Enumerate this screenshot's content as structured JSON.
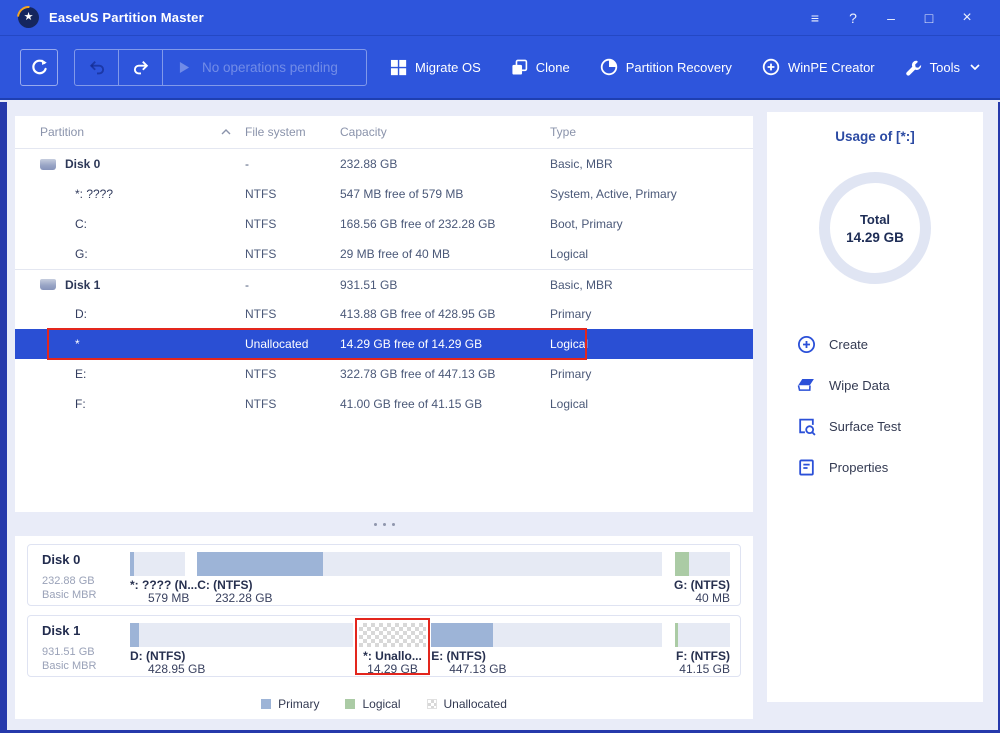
{
  "window": {
    "title": "EaseUS Partition Master",
    "logo_glyph": "★",
    "controls": [
      {
        "id": "menu",
        "glyph": "≡"
      },
      {
        "id": "help",
        "glyph": "?"
      },
      {
        "id": "minimize",
        "glyph": "–"
      },
      {
        "id": "maximize",
        "glyph": "□"
      },
      {
        "id": "close",
        "glyph": "×"
      }
    ]
  },
  "toolbar": {
    "pending_label": "No operations pending",
    "actions": [
      {
        "id": "migrate-os",
        "label": "Migrate OS",
        "icon": "migrate-os-icon"
      },
      {
        "id": "clone",
        "label": "Clone",
        "icon": "clone-icon"
      },
      {
        "id": "partition-recovery",
        "label": "Partition Recovery",
        "icon": "partition-recovery-icon"
      },
      {
        "id": "winpe-creator",
        "label": "WinPE Creator",
        "icon": "winpe-creator-icon"
      },
      {
        "id": "tools",
        "label": "Tools",
        "icon": "tools-icon",
        "has_dropdown": true
      }
    ]
  },
  "table": {
    "columns": [
      "Partition",
      "File system",
      "Capacity",
      "Type"
    ],
    "sort_column": "Partition",
    "rows": [
      {
        "name": "Disk 0",
        "fs": "-",
        "capacity": "232.88 GB",
        "type": "Basic, MBR",
        "is_disk": true
      },
      {
        "name": "*: ????",
        "fs": "NTFS",
        "capacity": "547 MB free of 579 MB",
        "type": "System, Active, Primary"
      },
      {
        "name": "C:",
        "fs": "NTFS",
        "capacity": "168.56 GB free of 232.28 GB",
        "type": "Boot, Primary"
      },
      {
        "name": "G:",
        "fs": "NTFS",
        "capacity": "29 MB free of 40 MB",
        "type": "Logical"
      },
      {
        "name": "Disk 1",
        "fs": "-",
        "capacity": "931.51 GB",
        "type": "Basic, MBR",
        "is_disk": true,
        "group_start": true
      },
      {
        "name": "D:",
        "fs": "NTFS",
        "capacity": "413.88 GB free of 428.95 GB",
        "type": "Primary"
      },
      {
        "name": "*",
        "fs": "Unallocated",
        "capacity": "14.29 GB free of 14.29 GB",
        "type": "Logical",
        "selected": true,
        "highlighted": true
      },
      {
        "name": "E:",
        "fs": "NTFS",
        "capacity": "322.78 GB free of 447.13 GB",
        "type": "Primary"
      },
      {
        "name": "F:",
        "fs": "NTFS",
        "capacity": "41.00 GB free of 41.15 GB",
        "type": "Logical"
      }
    ]
  },
  "sidebar": {
    "usage_title": "Usage of [*:]",
    "total_label": "Total",
    "total_value": "14.29 GB",
    "actions": [
      {
        "id": "create",
        "label": "Create",
        "icon": "create-icon"
      },
      {
        "id": "wipe-data",
        "label": "Wipe Data",
        "icon": "wipe-data-icon"
      },
      {
        "id": "surface-test",
        "label": "Surface Test",
        "icon": "surface-test-icon"
      },
      {
        "id": "properties",
        "label": "Properties",
        "icon": "properties-icon"
      }
    ]
  },
  "disk_map": {
    "disks": [
      {
        "name": "Disk 0",
        "size": "232.88 GB",
        "layout": "Basic MBR",
        "partitions": [
          {
            "label": "*: ???? (N...",
            "size": "579 MB",
            "kind": "primary",
            "left_pct": 0,
            "width_pct": 9.2,
            "used_pct": 7,
            "align": "left"
          },
          {
            "label": "C: (NTFS)",
            "size": "232.28 GB",
            "kind": "primary",
            "left_pct": 11.2,
            "width_pct": 77.4,
            "used_pct": 27,
            "align": "left"
          },
          {
            "label": "G: (NTFS)",
            "size": "40 MB",
            "kind": "logical",
            "left_pct": 90.8,
            "width_pct": 9.2,
            "used_pct": 25,
            "align": "right"
          }
        ]
      },
      {
        "name": "Disk 1",
        "size": "931.51 GB",
        "layout": "Basic MBR",
        "partitions": [
          {
            "label": "D: (NTFS)",
            "size": "428.95 GB",
            "kind": "primary",
            "left_pct": 0,
            "width_pct": 37.2,
            "used_pct": 4,
            "align": "left"
          },
          {
            "label": "*: Unallo...",
            "size": "14.29 GB",
            "kind": "unallocated",
            "left_pct": 38.1,
            "width_pct": 11.3,
            "used_pct": 0,
            "align": "center",
            "highlighted": true
          },
          {
            "label": "E: (NTFS)",
            "size": "447.13 GB",
            "kind": "primary",
            "left_pct": 50.2,
            "width_pct": 38.4,
            "used_pct": 27,
            "align": "left"
          },
          {
            "label": "F: (NTFS)",
            "size": "41.15 GB",
            "kind": "logical",
            "left_pct": 90.8,
            "width_pct": 9.2,
            "used_pct": 5,
            "align": "right"
          }
        ]
      }
    ],
    "legend": [
      {
        "label": "Primary",
        "kind": "primary"
      },
      {
        "label": "Logical",
        "kind": "logical"
      },
      {
        "label": "Unallocated",
        "kind": "unallocated"
      }
    ]
  },
  "colors": {
    "accent_blue": "#2e55dc",
    "selection_blue": "#2a4fd4",
    "highlight_red": "#e3261d",
    "primary_fill": "#9db4d7",
    "logical_fill": "#abcba5",
    "panel_bg": "#e9ecf8"
  }
}
